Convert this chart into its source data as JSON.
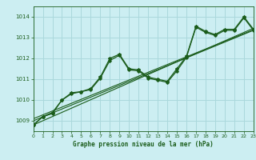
{
  "title": "Graphe pression niveau de la mer (hPa)",
  "bg_color": "#cceef2",
  "grid_color": "#aad8dc",
  "line_color": "#1a5c1a",
  "x_min": 0,
  "x_max": 23,
  "y_min": 1008.5,
  "y_max": 1014.5,
  "y_ticks": [
    1009,
    1010,
    1011,
    1012,
    1013,
    1014
  ],
  "x_ticks": [
    0,
    1,
    2,
    3,
    4,
    5,
    6,
    7,
    8,
    9,
    10,
    11,
    12,
    13,
    14,
    15,
    16,
    17,
    18,
    19,
    20,
    21,
    22,
    23
  ],
  "series1": [
    [
      0,
      1008.8
    ],
    [
      1,
      1009.2
    ],
    [
      2,
      1009.4
    ],
    [
      3,
      1010.0
    ],
    [
      4,
      1010.35
    ],
    [
      5,
      1010.4
    ],
    [
      6,
      1010.55
    ],
    [
      7,
      1011.1
    ],
    [
      8,
      1012.0
    ],
    [
      9,
      1012.2
    ],
    [
      10,
      1011.5
    ],
    [
      11,
      1011.45
    ],
    [
      12,
      1011.1
    ],
    [
      13,
      1011.0
    ],
    [
      14,
      1010.9
    ],
    [
      15,
      1011.5
    ],
    [
      16,
      1012.1
    ],
    [
      17,
      1013.55
    ],
    [
      18,
      1013.3
    ],
    [
      19,
      1013.15
    ],
    [
      20,
      1013.4
    ],
    [
      21,
      1013.4
    ],
    [
      22,
      1014.0
    ],
    [
      23,
      1013.4
    ]
  ],
  "series2": [
    [
      0,
      1008.8
    ],
    [
      1,
      1009.2
    ],
    [
      2,
      1009.35
    ],
    [
      3,
      1010.0
    ],
    [
      4,
      1010.3
    ],
    [
      5,
      1010.4
    ],
    [
      6,
      1010.5
    ],
    [
      7,
      1011.05
    ],
    [
      8,
      1011.9
    ],
    [
      9,
      1012.15
    ],
    [
      10,
      1011.45
    ],
    [
      11,
      1011.4
    ],
    [
      12,
      1011.05
    ],
    [
      13,
      1010.95
    ],
    [
      14,
      1010.85
    ],
    [
      15,
      1011.4
    ],
    [
      16,
      1012.05
    ],
    [
      17,
      1013.5
    ],
    [
      18,
      1013.25
    ],
    [
      19,
      1013.1
    ],
    [
      20,
      1013.35
    ],
    [
      21,
      1013.35
    ],
    [
      22,
      1013.95
    ],
    [
      23,
      1013.35
    ]
  ],
  "trend_lines": [
    [
      [
        0,
        1008.8
      ],
      [
        23,
        1013.45
      ]
    ],
    [
      [
        0,
        1009.0
      ],
      [
        23,
        1013.35
      ]
    ],
    [
      [
        0,
        1009.1
      ],
      [
        23,
        1013.38
      ]
    ]
  ]
}
